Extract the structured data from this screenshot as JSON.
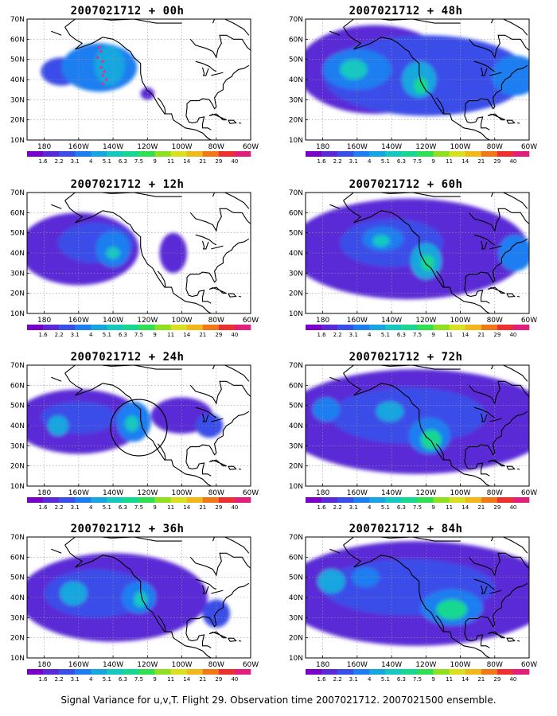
{
  "panels": [
    {
      "title": "2007021712 + 00h",
      "blobs": [
        {
          "lon": -148,
          "lat": 46,
          "rx": 22,
          "ry": 12,
          "lvl": 3
        },
        {
          "lon": -142,
          "lat": 47,
          "rx": 9,
          "ry": 10,
          "lvl": 4
        },
        {
          "lon": -170,
          "lat": 44,
          "rx": 12,
          "ry": 7,
          "lvl": 2
        },
        {
          "lon": -120,
          "lat": 33,
          "rx": 4,
          "ry": 3,
          "lvl": 1
        }
      ],
      "circle": null,
      "dots": true
    },
    {
      "title": "2007021712 + 48h",
      "blobs": [
        {
          "lon": -150,
          "lat": 45,
          "rx": 45,
          "ry": 22,
          "lvl": 1
        },
        {
          "lon": -120,
          "lat": 42,
          "rx": 60,
          "ry": 20,
          "lvl": 2
        },
        {
          "lon": -160,
          "lat": 45,
          "rx": 20,
          "ry": 10,
          "lvl": 3
        },
        {
          "lon": -162,
          "lat": 45,
          "rx": 8,
          "ry": 5,
          "lvl": 5
        },
        {
          "lon": -124,
          "lat": 40,
          "rx": 10,
          "ry": 9,
          "lvl": 4
        },
        {
          "lon": -123,
          "lat": 37,
          "rx": 4,
          "ry": 4,
          "lvl": 6
        },
        {
          "lon": -68,
          "lat": 42,
          "rx": 14,
          "ry": 10,
          "lvl": 3
        }
      ],
      "circle": null,
      "dots": false
    },
    {
      "title": "2007021712 + 12h",
      "blobs": [
        {
          "lon": -160,
          "lat": 42,
          "rx": 35,
          "ry": 18,
          "lvl": 1
        },
        {
          "lon": -150,
          "lat": 45,
          "rx": 22,
          "ry": 10,
          "lvl": 2
        },
        {
          "lon": -140,
          "lat": 42,
          "rx": 10,
          "ry": 9,
          "lvl": 3
        },
        {
          "lon": -140,
          "lat": 40,
          "rx": 4,
          "ry": 3,
          "lvl": 5
        },
        {
          "lon": -105,
          "lat": 40,
          "rx": 8,
          "ry": 10,
          "lvl": 1
        }
      ],
      "circle": null,
      "dots": false
    },
    {
      "title": "2007021712 + 60h",
      "blobs": [
        {
          "lon": -130,
          "lat": 42,
          "rx": 70,
          "ry": 25,
          "lvl": 1
        },
        {
          "lon": -140,
          "lat": 45,
          "rx": 30,
          "ry": 12,
          "lvl": 2
        },
        {
          "lon": -145,
          "lat": 47,
          "rx": 12,
          "ry": 6,
          "lvl": 3
        },
        {
          "lon": -146,
          "lat": 46,
          "rx": 5,
          "ry": 3,
          "lvl": 5
        },
        {
          "lon": -120,
          "lat": 36,
          "rx": 9,
          "ry": 9,
          "lvl": 4
        },
        {
          "lon": -119,
          "lat": 35,
          "rx": 4,
          "ry": 4,
          "lvl": 6
        },
        {
          "lon": -68,
          "lat": 40,
          "rx": 10,
          "ry": 9,
          "lvl": 3
        }
      ],
      "circle": null,
      "dots": false
    },
    {
      "title": "2007021712 + 24h",
      "blobs": [
        {
          "lon": -160,
          "lat": 42,
          "rx": 38,
          "ry": 16,
          "lvl": 1
        },
        {
          "lon": -160,
          "lat": 44,
          "rx": 22,
          "ry": 8,
          "lvl": 2
        },
        {
          "lon": -172,
          "lat": 40,
          "rx": 6,
          "ry": 5,
          "lvl": 4
        },
        {
          "lon": -128,
          "lat": 42,
          "rx": 10,
          "ry": 10,
          "lvl": 3
        },
        {
          "lon": -129,
          "lat": 41,
          "rx": 4,
          "ry": 4,
          "lvl": 5
        },
        {
          "lon": -100,
          "lat": 45,
          "rx": 18,
          "ry": 9,
          "lvl": 1
        },
        {
          "lon": -84,
          "lat": 40,
          "rx": 8,
          "ry": 6,
          "lvl": 2
        }
      ],
      "circle": {
        "lon": -125,
        "lat": 39,
        "r": 10
      },
      "dots": false
    },
    {
      "title": "2007021712 + 72h",
      "blobs": [
        {
          "lon": -125,
          "lat": 42,
          "rx": 80,
          "ry": 26,
          "lvl": 1
        },
        {
          "lon": -130,
          "lat": 45,
          "rx": 45,
          "ry": 14,
          "lvl": 2
        },
        {
          "lon": -141,
          "lat": 47,
          "rx": 8,
          "ry": 5,
          "lvl": 4
        },
        {
          "lon": -118,
          "lat": 35,
          "rx": 12,
          "ry": 9,
          "lvl": 3
        },
        {
          "lon": -117,
          "lat": 33,
          "rx": 6,
          "ry": 5,
          "lvl": 6
        },
        {
          "lon": -178,
          "lat": 48,
          "rx": 8,
          "ry": 6,
          "lvl": 3
        }
      ],
      "circle": null,
      "dots": false
    },
    {
      "title": "2007021712 + 36h",
      "blobs": [
        {
          "lon": -140,
          "lat": 40,
          "rx": 55,
          "ry": 22,
          "lvl": 1
        },
        {
          "lon": -150,
          "lat": 42,
          "rx": 30,
          "ry": 12,
          "lvl": 2
        },
        {
          "lon": -163,
          "lat": 42,
          "rx": 8,
          "ry": 6,
          "lvl": 4
        },
        {
          "lon": -125,
          "lat": 40,
          "rx": 10,
          "ry": 8,
          "lvl": 3
        },
        {
          "lon": -124,
          "lat": 39,
          "rx": 4,
          "ry": 4,
          "lvl": 5
        },
        {
          "lon": -80,
          "lat": 32,
          "rx": 8,
          "ry": 7,
          "lvl": 2
        }
      ],
      "circle": null,
      "dots": false
    },
    {
      "title": "2007021712 + 84h",
      "blobs": [
        {
          "lon": -125,
          "lat": 42,
          "rx": 80,
          "ry": 26,
          "lvl": 1
        },
        {
          "lon": -130,
          "lat": 45,
          "rx": 50,
          "ry": 14,
          "lvl": 2
        },
        {
          "lon": -105,
          "lat": 35,
          "rx": 18,
          "ry": 9,
          "lvl": 3
        },
        {
          "lon": -105,
          "lat": 34,
          "rx": 9,
          "ry": 5,
          "lvl": 6
        },
        {
          "lon": -175,
          "lat": 48,
          "rx": 8,
          "ry": 6,
          "lvl": 4
        },
        {
          "lon": -155,
          "lat": 50,
          "rx": 8,
          "ry": 5,
          "lvl": 3
        }
      ],
      "circle": null,
      "dots": false
    }
  ],
  "lat_labels": [
    "70N",
    "60N",
    "50N",
    "40N",
    "30N",
    "20N",
    "10N"
  ],
  "lon_labels": [
    "180",
    "160W",
    "140W",
    "120W",
    "100W",
    "80W",
    "60W"
  ],
  "colorbar_labels": [
    "1.6",
    "2.2",
    "3.1",
    "4",
    "5.1",
    "6.3",
    "7.5",
    "9",
    "11",
    "14",
    "21",
    "29",
    "40"
  ],
  "colorbar_colors": [
    "#7b00c8",
    "#5a2ad6",
    "#3a4ee8",
    "#1e7ef0",
    "#18a6e0",
    "#16c8c0",
    "#16d890",
    "#30e050",
    "#8ee020",
    "#d8e020",
    "#f0b818",
    "#f07818",
    "#ee3030",
    "#e0207a"
  ],
  "footer": "Signal Variance for u,v,T. Flight 29. Observation time 2007021712. 2007021500 ensemble."
}
